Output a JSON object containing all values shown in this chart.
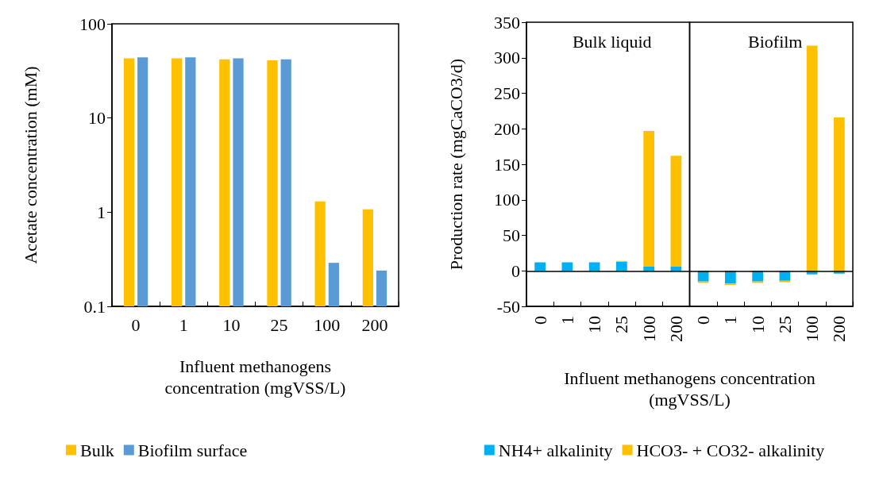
{
  "chart_data": [
    {
      "type": "bar",
      "ylabel": "Acetate concentration (mM)",
      "xlabel": "Influent methanogens concentration (mgVSS/L)",
      "categories": [
        "0",
        "1",
        "10",
        "25",
        "100",
        "200"
      ],
      "series": [
        {
          "name": "Bulk",
          "color": "#ffc000",
          "values": [
            43,
            43,
            42,
            41,
            1.3,
            1.07
          ]
        },
        {
          "name": "Biofilm surface",
          "color": "#5b9bd5",
          "values": [
            44,
            44,
            43,
            42,
            0.29,
            0.24
          ]
        }
      ],
      "log": "y",
      "ylim": [
        0.1,
        100
      ],
      "yticks": [
        0.1,
        1,
        10,
        100
      ],
      "grid": false,
      "legend": "bottom"
    },
    {
      "type": "bar",
      "stacked": true,
      "title": "Bulk liquid",
      "ylabel": "Production rate (mgCaCO3/d)",
      "xlabel": "Influent methanogens concentration (mgVSS/L)",
      "categories": [
        "0",
        "1",
        "10",
        "25",
        "100",
        "200"
      ],
      "series": [
        {
          "name": "NH4+ alkalinity",
          "color": "#00b0f0",
          "values": [
            12,
            12,
            12,
            13,
            6,
            6
          ]
        },
        {
          "name": "HCO3- + CO32- alkalinity",
          "color": "#ffc000",
          "values": [
            0,
            0,
            0,
            1,
            191,
            156
          ]
        }
      ],
      "ylim": [
        -50,
        350
      ],
      "yticks": [
        -50,
        0,
        50,
        100,
        150,
        200,
        250,
        300,
        350
      ],
      "grid": false,
      "legend": "bottom",
      "ref_lines": [
        {
          "axis": "y",
          "value": 0,
          "color": "#000000"
        }
      ]
    },
    {
      "type": "bar",
      "stacked": true,
      "title": "Biofilm",
      "categories": [
        "0",
        "1",
        "10",
        "25",
        "100",
        "200"
      ],
      "series": [
        {
          "color": "#00b0f0",
          "values": [
            -15,
            -18,
            -15,
            -14,
            -5,
            -4
          ]
        },
        {
          "color": "#ffc000",
          "values": [
            -2,
            -2,
            -2,
            -2,
            317,
            216
          ]
        }
      ],
      "ylim": [
        -50,
        350
      ],
      "yticks": [
        -50,
        0,
        50,
        100,
        150,
        200,
        250,
        300,
        350
      ],
      "grid": false,
      "tick_labels": "x",
      "ref_lines": [
        {
          "axis": "y",
          "value": 0,
          "color": "#000000"
        }
      ]
    }
  ]
}
